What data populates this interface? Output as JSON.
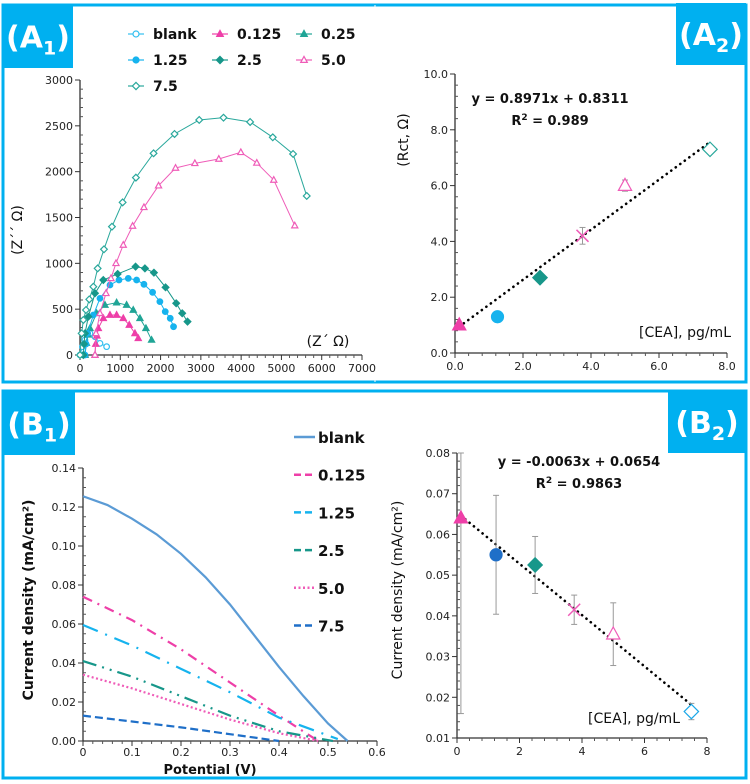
{
  "colors": {
    "frame": "#00b0f0",
    "label_box": "#00b0f0",
    "label_text": "#ffffff"
  },
  "panel_labels": [
    {
      "letter": "A",
      "sub": "1"
    },
    {
      "letter": "A",
      "sub": "2"
    },
    {
      "letter": "B",
      "sub": "1"
    },
    {
      "letter": "B",
      "sub": "2"
    }
  ],
  "chart_data": [
    {
      "id": "A1",
      "type": "scatter-line",
      "xlabel": "(Z´ Ω)",
      "ylabel": "(Z´´ Ω)",
      "xlim": [
        0,
        7000
      ],
      "ylim": [
        0,
        3000
      ],
      "xticks": [
        0,
        1000,
        2000,
        3000,
        4000,
        5000,
        6000,
        7000
      ],
      "yticks": [
        0,
        500,
        1000,
        1500,
        2000,
        2500,
        3000
      ],
      "legend": "top",
      "series": [
        {
          "name": "blank",
          "color": "#33bff0",
          "marker": "circle-open",
          "points": [
            [
              0,
              0
            ],
            [
              60,
              90
            ],
            [
              124,
              164
            ],
            [
              248,
              236
            ],
            [
              372,
              200
            ],
            [
              496,
              127
            ],
            [
              661,
              91
            ]
          ]
        },
        {
          "name": "0.125",
          "color": "#ee3fa8",
          "marker": "triangle-filled",
          "points": [
            [
              372,
              0
            ],
            [
              390,
              120
            ],
            [
              420,
              210
            ],
            [
              455,
              291
            ],
            [
              579,
              400
            ],
            [
              744,
              436
            ],
            [
              909,
              436
            ],
            [
              1074,
              400
            ],
            [
              1223,
              327
            ],
            [
              1364,
              236
            ],
            [
              1446,
              182
            ]
          ]
        },
        {
          "name": "0.25",
          "color": "#20a596",
          "marker": "triangle-filled",
          "points": [
            [
              124,
              0
            ],
            [
              160,
              130
            ],
            [
              200,
              220
            ],
            [
              248,
              291
            ],
            [
              413,
              455
            ],
            [
              620,
              545
            ],
            [
              909,
              571
            ],
            [
              1157,
              545
            ],
            [
              1322,
              491
            ],
            [
              1488,
              400
            ],
            [
              1636,
              291
            ],
            [
              1777,
              164
            ]
          ]
        },
        {
          "name": "1.25",
          "color": "#16b3ee",
          "marker": "circle-filled",
          "points": [
            [
              124,
              0
            ],
            [
              150,
              120
            ],
            [
              190,
              236
            ],
            [
              331,
              436
            ],
            [
              496,
              618
            ],
            [
              744,
              764
            ],
            [
              967,
              818
            ],
            [
              1198,
              836
            ],
            [
              1405,
              818
            ],
            [
              1587,
              771
            ],
            [
              1802,
              684
            ],
            [
              1983,
              582
            ],
            [
              2116,
              473
            ],
            [
              2240,
              400
            ],
            [
              2322,
              309
            ]
          ]
        },
        {
          "name": "2.5",
          "color": "#17978a",
          "marker": "diamond-filled",
          "points": [
            [
              83,
              0
            ],
            [
              100,
              120
            ],
            [
              124,
              236
            ],
            [
              207,
              418
            ],
            [
              372,
              673
            ],
            [
              579,
              818
            ],
            [
              934,
              884
            ],
            [
              1380,
              964
            ],
            [
              1612,
              945
            ],
            [
              1835,
              898
            ],
            [
              2124,
              738
            ],
            [
              2388,
              564
            ],
            [
              2537,
              455
            ],
            [
              2669,
              364
            ]
          ]
        },
        {
          "name": "5.0",
          "color": "#ef5cb8",
          "marker": "triangle-open",
          "points": [
            [
              372,
              0
            ],
            [
              397,
              236
            ],
            [
              496,
              455
            ],
            [
              645,
              673
            ],
            [
              769,
              836
            ],
            [
              893,
              1000
            ],
            [
              1074,
              1200
            ],
            [
              1306,
              1407
            ],
            [
              1587,
              1611
            ],
            [
              1950,
              1847
            ],
            [
              2372,
              2040
            ],
            [
              2851,
              2091
            ],
            [
              3446,
              2138
            ],
            [
              3992,
              2211
            ],
            [
              4388,
              2095
            ],
            [
              4810,
              1909
            ],
            [
              5331,
              1411
            ]
          ]
        },
        {
          "name": "7.5",
          "color": "#2aa89c",
          "marker": "diamond-open",
          "points": [
            [
              0,
              0
            ],
            [
              41,
              236
            ],
            [
              83,
              382
            ],
            [
              149,
              491
            ],
            [
              231,
              607
            ],
            [
              331,
              745
            ],
            [
              438,
              945
            ],
            [
              595,
              1153
            ],
            [
              793,
              1400
            ],
            [
              1058,
              1665
            ],
            [
              1388,
              1935
            ],
            [
              1826,
              2200
            ],
            [
              2347,
              2411
            ],
            [
              2959,
              2564
            ],
            [
              3562,
              2589
            ],
            [
              4223,
              2542
            ],
            [
              4785,
              2375
            ],
            [
              5289,
              2193
            ],
            [
              5628,
              1735
            ]
          ]
        }
      ]
    },
    {
      "id": "A2",
      "type": "scatter",
      "xlabel": "[CEA], pg/mL",
      "ylabel": "(Rct, Ω)",
      "xlim": [
        0,
        8
      ],
      "ylim": [
        0,
        10
      ],
      "xticks": [
        "0.0",
        "2.0",
        "4.0",
        "6.0",
        "8.0"
      ],
      "yticks": [
        "0.0",
        "2.0",
        "4.0",
        "6.0",
        "8.0",
        "10.0"
      ],
      "equation": "y = 0.8971x + 0.8311",
      "r2_label": "R",
      "r2_value": " = 0.989",
      "trend": {
        "slope": 0.8971,
        "intercept": 0.8311,
        "x_range": [
          0.125,
          7.5
        ]
      },
      "points": [
        {
          "x": 0.125,
          "y": 1.0,
          "marker": "triangle-filled",
          "color": "#ee3fa8"
        },
        {
          "x": 1.25,
          "y": 1.3,
          "marker": "circle-filled",
          "color": "#16b3ee"
        },
        {
          "x": 2.5,
          "y": 2.7,
          "marker": "diamond-filled",
          "color": "#17978a"
        },
        {
          "x": 3.75,
          "y": 4.2,
          "marker": "x",
          "color": "#ef5cb8",
          "err": 0.3
        },
        {
          "x": 5.0,
          "y": 6.0,
          "marker": "triangle-open",
          "color": "#ef5cb8",
          "err": 0.2
        },
        {
          "x": 7.5,
          "y": 7.3,
          "marker": "diamond-open",
          "color": "#2aa89c"
        }
      ]
    },
    {
      "id": "B1",
      "type": "line",
      "xlabel": "Potential (V)",
      "ylabel": "Current density (mA/cm²)",
      "xlim": [
        0,
        0.6
      ],
      "ylim": [
        0,
        0.14
      ],
      "xticks": [
        "0",
        "0.1",
        "0.2",
        "0.3",
        "0.4",
        "0.5",
        "0.6"
      ],
      "yticks": [
        "0.00",
        "0.02",
        "0.04",
        "0.06",
        "0.08",
        "0.10",
        "0.12",
        "0.14"
      ],
      "legend": "right",
      "series": [
        {
          "name": "blank",
          "color": "#5b9bd5",
          "dash": "solid",
          "points": [
            [
              0,
              0.1255
            ],
            [
              0.05,
              0.121
            ],
            [
              0.1,
              0.114
            ],
            [
              0.15,
              0.106
            ],
            [
              0.2,
              0.096
            ],
            [
              0.25,
              0.084
            ],
            [
              0.3,
              0.07
            ],
            [
              0.35,
              0.054
            ],
            [
              0.4,
              0.038
            ],
            [
              0.45,
              0.023
            ],
            [
              0.5,
              0.009
            ],
            [
              0.54,
              0
            ]
          ]
        },
        {
          "name": "0.125",
          "color": "#ee3fa8",
          "dash": "dash-dot",
          "points": [
            [
              0,
              0.074
            ],
            [
              0.1,
              0.062
            ],
            [
              0.2,
              0.047
            ],
            [
              0.3,
              0.03
            ],
            [
              0.4,
              0.013
            ],
            [
              0.48,
              0
            ]
          ]
        },
        {
          "name": "1.25",
          "color": "#16b3ee",
          "dash": "long-dash-dot",
          "points": [
            [
              0,
              0.0595
            ],
            [
              0.1,
              0.049
            ],
            [
              0.2,
              0.037
            ],
            [
              0.3,
              0.025
            ],
            [
              0.4,
              0.012
            ],
            [
              0.52,
              0.001
            ]
          ]
        },
        {
          "name": "2.5",
          "color": "#17978a",
          "dash": "long-dash-dot-dot",
          "points": [
            [
              0,
              0.041
            ],
            [
              0.1,
              0.033
            ],
            [
              0.2,
              0.023
            ],
            [
              0.3,
              0.013
            ],
            [
              0.4,
              0.005
            ],
            [
              0.51,
              0
            ]
          ]
        },
        {
          "name": "5.0",
          "color": "#ef5cb8",
          "dash": "dotted",
          "points": [
            [
              0,
              0.034
            ],
            [
              0.1,
              0.027
            ],
            [
              0.2,
              0.019
            ],
            [
              0.3,
              0.011
            ],
            [
              0.4,
              0.004
            ],
            [
              0.48,
              0
            ]
          ]
        },
        {
          "name": "7.5",
          "color": "#1f6fc8",
          "dash": "dashed",
          "points": [
            [
              0,
              0.013
            ],
            [
              0.1,
              0.01
            ],
            [
              0.2,
              0.007
            ],
            [
              0.3,
              0.0035
            ],
            [
              0.4,
              0
            ]
          ]
        }
      ]
    },
    {
      "id": "B2",
      "type": "scatter",
      "xlabel": "[CEA], pg/mL",
      "ylabel": "Current density (mA/cm²)",
      "xlim": [
        0,
        8
      ],
      "ylim": [
        0.01,
        0.08
      ],
      "xticks": [
        "0",
        "2",
        "4",
        "6",
        "8"
      ],
      "yticks": [
        "0.01",
        "0.02",
        "0.03",
        "0.04",
        "0.05",
        "0.06",
        "0.07",
        "0.08"
      ],
      "equation": "y = -0.0063x + 0.0654",
      "r2_label": "R",
      "r2_value": " = 0.9863",
      "trend": {
        "slope": -0.0063,
        "intercept": 0.0654,
        "x_range": [
          0.125,
          7.5
        ]
      },
      "points": [
        {
          "x": 0.125,
          "y": 0.064,
          "marker": "triangle-filled",
          "color": "#ee3fa8",
          "err": 0.048
        },
        {
          "x": 1.25,
          "y": 0.055,
          "marker": "circle-filled",
          "color": "#1f6fc8",
          "err": 0.0146
        },
        {
          "x": 2.5,
          "y": 0.0525,
          "marker": "diamond-filled",
          "color": "#17978a",
          "err": 0.007
        },
        {
          "x": 3.75,
          "y": 0.0415,
          "marker": "x",
          "color": "#ef5cb8",
          "err": 0.0036
        },
        {
          "x": 5.0,
          "y": 0.0355,
          "marker": "triangle-open",
          "color": "#ef5cb8",
          "err": 0.0077
        },
        {
          "x": 7.5,
          "y": 0.0165,
          "marker": "diamond-open",
          "color": "#1aa7e8",
          "err": 0.002
        }
      ]
    }
  ]
}
